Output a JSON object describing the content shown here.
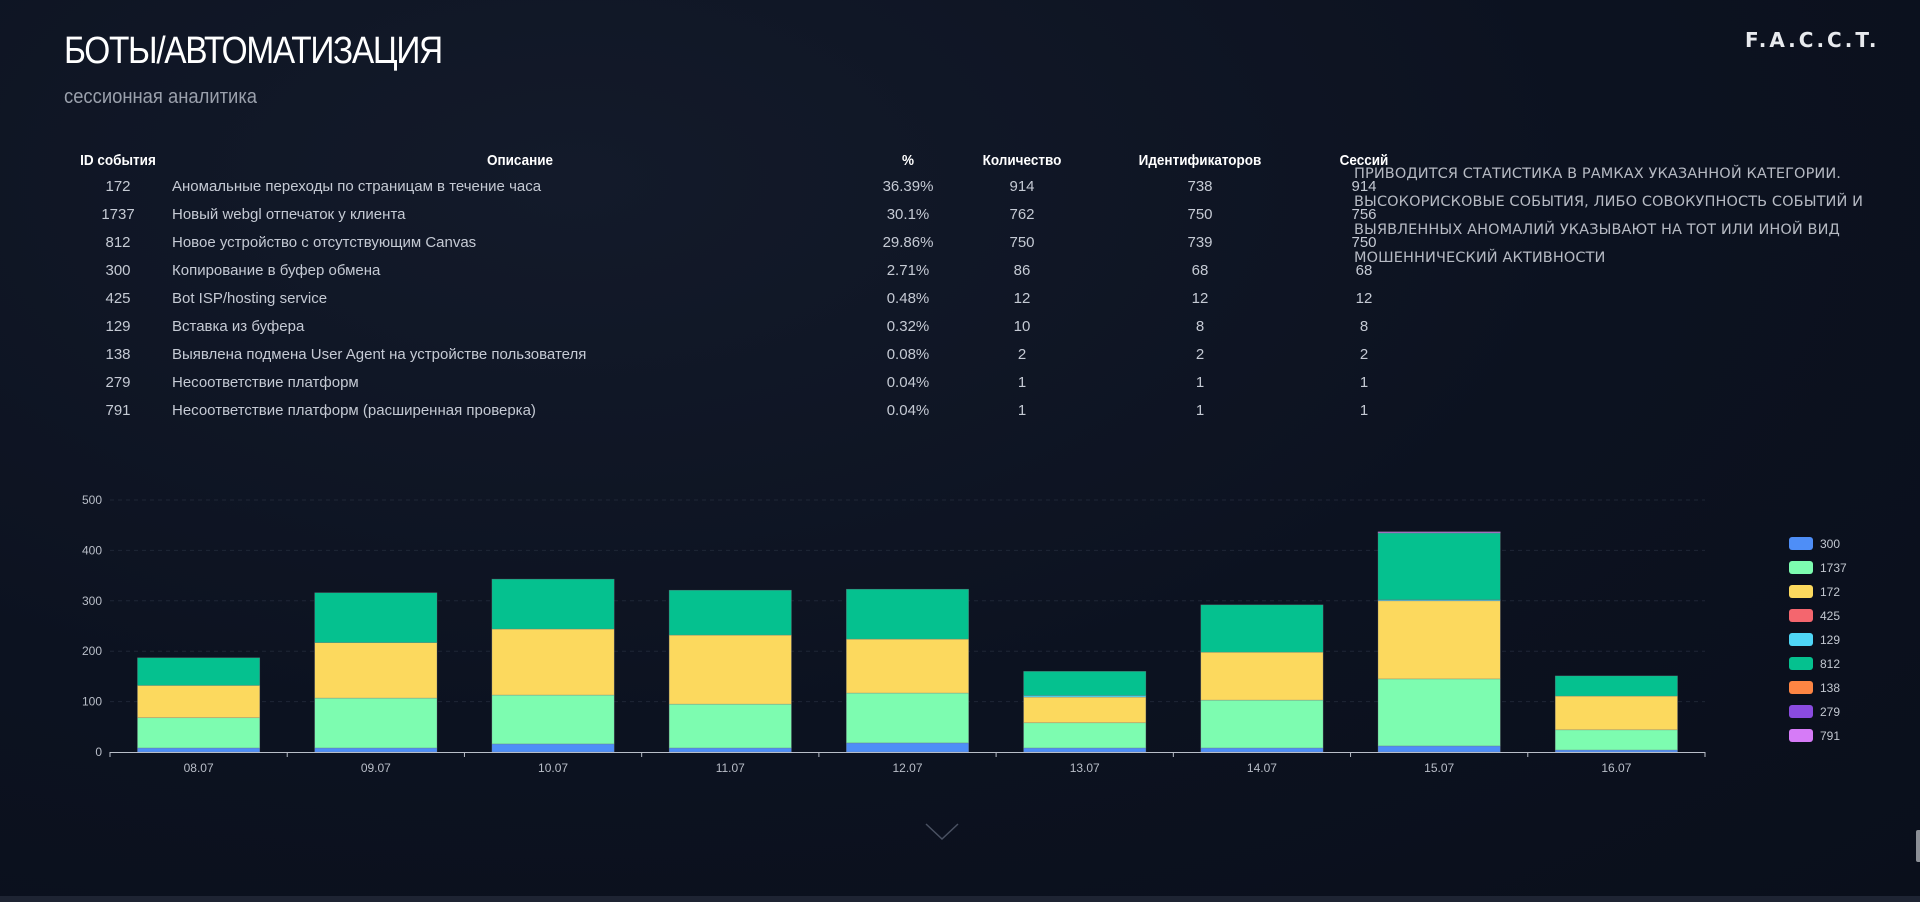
{
  "header": {
    "title": "БОТЫ/АВТОМАТИЗАЦИЯ",
    "subtitle": "сессионная аналитика",
    "logo": "F.A.C.C.T."
  },
  "table": {
    "columns": [
      "ID события",
      "Описание",
      "%",
      "Количество",
      "Идентификаторов",
      "Сессий"
    ],
    "rows": [
      {
        "id": "172",
        "desc": "Аномальные переходы по страницам в течение часа",
        "pct": "36.39%",
        "count": "914",
        "ids": "738",
        "sessions": "914"
      },
      {
        "id": "1737",
        "desc": "Новый webgl отпечаток у клиента",
        "pct": "30.1%",
        "count": "762",
        "ids": "750",
        "sessions": "756"
      },
      {
        "id": "812",
        "desc": "Новое устройство с отсутствующим Canvas",
        "pct": "29.86%",
        "count": "750",
        "ids": "739",
        "sessions": "750"
      },
      {
        "id": "300",
        "desc": "Копирование в буфер обмена",
        "pct": "2.71%",
        "count": "86",
        "ids": "68",
        "sessions": "68"
      },
      {
        "id": "425",
        "desc": "Bot ISP/hosting service",
        "pct": "0.48%",
        "count": "12",
        "ids": "12",
        "sessions": "12"
      },
      {
        "id": "129",
        "desc": "Вставка из буфера",
        "pct": "0.32%",
        "count": "10",
        "ids": "8",
        "sessions": "8"
      },
      {
        "id": "138",
        "desc": "Выявлена подмена User Agent на устройстве пользователя",
        "pct": "0.08%",
        "count": "2",
        "ids": "2",
        "sessions": "2"
      },
      {
        "id": "279",
        "desc": "Несоответствие платформ",
        "pct": "0.04%",
        "count": "1",
        "ids": "1",
        "sessions": "1"
      },
      {
        "id": "791",
        "desc": "Несоответствие платформ (расширенная проверка)",
        "pct": "0.04%",
        "count": "1",
        "ids": "1",
        "sessions": "1"
      }
    ]
  },
  "note": "ПРИВОДИТСЯ СТАТИСТИКА В РАМКАХ УКАЗАННОЙ КАТЕГОРИИ. ВЫСОКОРИСКОВЫЕ СОБЫТИЯ, ЛИБО СОВОКУПНОСТЬ СОБЫТИЙ И ВЫЯВЛЕННЫХ АНОМАЛИЙ УКАЗЫВАЮТ НА ТОТ ИЛИ ИНОЙ ВИД МОШЕННИЧЕСКИЙ АКТИВНОСТИ",
  "chart_data": {
    "type": "bar",
    "stacked": true,
    "title": "",
    "xlabel": "",
    "ylabel": "",
    "ylim": [
      0,
      500
    ],
    "yticks": [
      0,
      100,
      200,
      300,
      400,
      500
    ],
    "grid": true,
    "legend_position": "right",
    "categories": [
      "08.07",
      "09.07",
      "10.07",
      "11.07",
      "12.07",
      "13.07",
      "14.07",
      "15.07",
      "16.07"
    ],
    "series": [
      {
        "name": "300",
        "color": "#4e8ef7",
        "values": [
          8,
          8,
          16,
          8,
          18,
          8,
          8,
          12,
          4
        ]
      },
      {
        "name": "1737",
        "color": "#7dfcb0",
        "values": [
          60,
          99,
          97,
          87,
          99,
          50,
          95,
          133,
          40
        ]
      },
      {
        "name": "172",
        "color": "#fcd95e",
        "values": [
          64,
          110,
          131,
          137,
          107,
          51,
          95,
          155,
          67
        ]
      },
      {
        "name": "425",
        "color": "#f4666e",
        "values": [
          0,
          0,
          0,
          0,
          0,
          0,
          0,
          0,
          0
        ]
      },
      {
        "name": "129",
        "color": "#4fd6f6",
        "values": [
          0,
          0,
          0,
          0,
          0,
          3,
          0,
          2,
          0
        ]
      },
      {
        "name": "812",
        "color": "#05c18f",
        "values": [
          55,
          99,
          99,
          89,
          99,
          48,
          94,
          133,
          40
        ]
      },
      {
        "name": "138",
        "color": "#fd8543",
        "values": [
          0,
          0,
          0,
          0,
          0,
          0,
          0,
          0,
          0
        ]
      },
      {
        "name": "279",
        "color": "#8a4be0",
        "values": [
          0,
          0,
          0,
          0,
          0,
          0,
          0,
          1,
          0
        ]
      },
      {
        "name": "791",
        "color": "#d67bf7",
        "values": [
          0,
          0,
          0,
          0,
          0,
          0,
          0,
          1,
          0
        ]
      }
    ]
  }
}
